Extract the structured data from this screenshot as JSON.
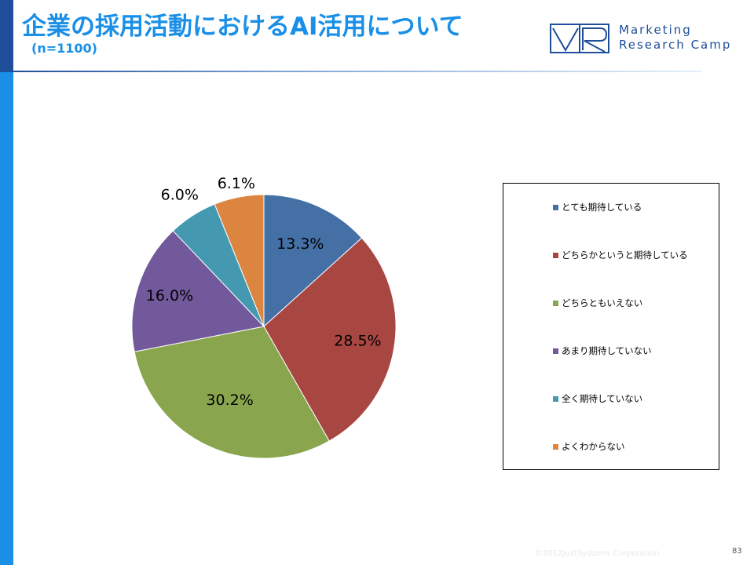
{
  "header": {
    "title": "企業の採用活動におけるAI活用について",
    "subtitle": "(n=1100)"
  },
  "logo": {
    "line1": "Marketing",
    "line2": "Research Camp"
  },
  "chart_data": {
    "type": "pie",
    "categories": [
      "とても期待している",
      "どちらかというと期待している",
      "どちらともいえない",
      "あまり期待していない",
      "全く期待していない",
      "よくわからない"
    ],
    "values": [
      13.3,
      28.5,
      30.2,
      16.0,
      6.0,
      6.1
    ],
    "value_labels": [
      "13.3%",
      "28.5%",
      "30.2%",
      "16.0%",
      "6.0%",
      "6.1%"
    ],
    "colors": [
      "#4470a6",
      "#a84642",
      "#89a54d",
      "#71599b",
      "#4499b1",
      "#db8540"
    ],
    "legend_position": "right",
    "start": "12 o'clock, clockwise"
  },
  "footer": {
    "copyright": "©2012JustSystems Corporation",
    "page": "83"
  }
}
